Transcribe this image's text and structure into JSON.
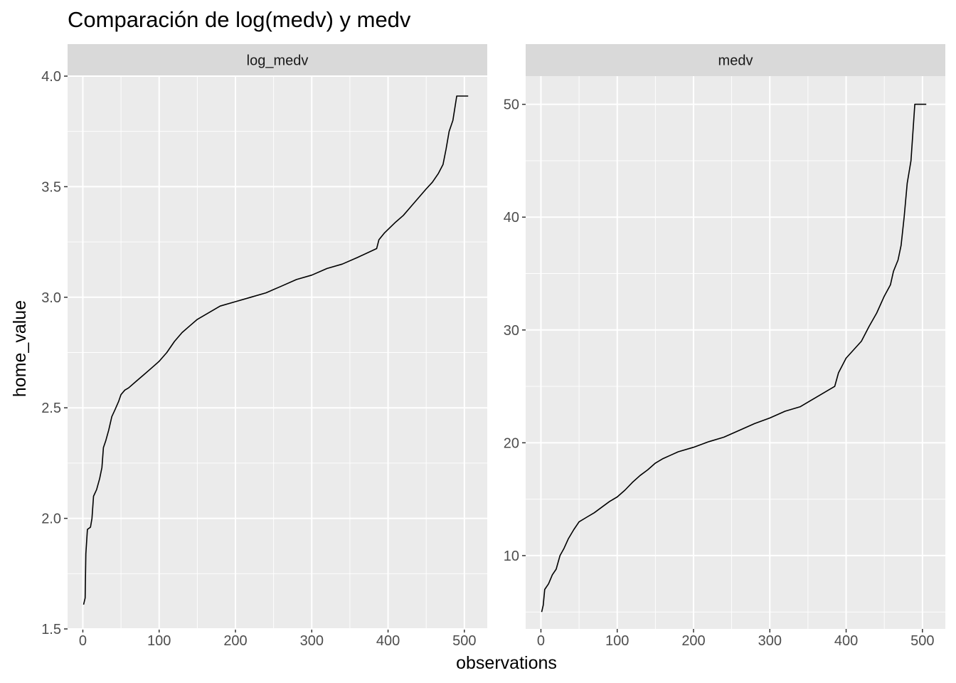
{
  "chart_data": {
    "type": "line",
    "title": "Comparación de log(medv) y medv",
    "xlabel": "observations",
    "ylabel": "home_value",
    "grid": true,
    "line_color": "#000000",
    "panel_background": "#ebebeb",
    "strip_background": "#d9d9d9",
    "grid_color": "#ffffff",
    "panels": [
      {
        "strip": "log_medv",
        "xlim": [
          -20,
          530
        ],
        "ylim": [
          1.5,
          4.0
        ],
        "xticks": [
          0,
          100,
          200,
          300,
          400,
          500
        ],
        "yticks": [
          1.5,
          2.0,
          2.5,
          3.0,
          3.5,
          4.0
        ],
        "ytick_labels": [
          "1.5",
          "2.0",
          "2.5",
          "3.0",
          "3.5",
          "4.0"
        ],
        "points": [
          [
            1,
            1.61
          ],
          [
            3,
            1.64
          ],
          [
            4,
            1.84
          ],
          [
            6,
            1.95
          ],
          [
            10,
            1.96
          ],
          [
            12,
            2.0
          ],
          [
            14,
            2.1
          ],
          [
            18,
            2.13
          ],
          [
            22,
            2.18
          ],
          [
            25,
            2.23
          ],
          [
            27,
            2.32
          ],
          [
            30,
            2.35
          ],
          [
            34,
            2.4
          ],
          [
            38,
            2.46
          ],
          [
            42,
            2.49
          ],
          [
            47,
            2.53
          ],
          [
            50,
            2.56
          ],
          [
            55,
            2.58
          ],
          [
            60,
            2.59
          ],
          [
            70,
            2.62
          ],
          [
            80,
            2.65
          ],
          [
            90,
            2.68
          ],
          [
            100,
            2.71
          ],
          [
            110,
            2.75
          ],
          [
            120,
            2.8
          ],
          [
            130,
            2.84
          ],
          [
            140,
            2.87
          ],
          [
            150,
            2.9
          ],
          [
            160,
            2.92
          ],
          [
            170,
            2.94
          ],
          [
            180,
            2.96
          ],
          [
            200,
            2.98
          ],
          [
            220,
            3.0
          ],
          [
            240,
            3.02
          ],
          [
            260,
            3.05
          ],
          [
            280,
            3.08
          ],
          [
            300,
            3.1
          ],
          [
            320,
            3.13
          ],
          [
            340,
            3.15
          ],
          [
            360,
            3.18
          ],
          [
            385,
            3.22
          ],
          [
            388,
            3.26
          ],
          [
            395,
            3.29
          ],
          [
            410,
            3.34
          ],
          [
            420,
            3.37
          ],
          [
            430,
            3.41
          ],
          [
            440,
            3.45
          ],
          [
            450,
            3.49
          ],
          [
            458,
            3.52
          ],
          [
            466,
            3.56
          ],
          [
            472,
            3.6
          ],
          [
            476,
            3.67
          ],
          [
            480,
            3.75
          ],
          [
            485,
            3.8
          ],
          [
            490,
            3.91
          ],
          [
            505,
            3.91
          ]
        ]
      },
      {
        "strip": "medv",
        "xlim": [
          -20,
          530
        ],
        "ylim": [
          3.5,
          52.5
        ],
        "xticks": [
          0,
          100,
          200,
          300,
          400,
          500
        ],
        "yticks": [
          10,
          20,
          30,
          40,
          50
        ],
        "ytick_labels": [
          "10",
          "20",
          "30",
          "40",
          "50"
        ],
        "points": [
          [
            1,
            5.0
          ],
          [
            3,
            5.6
          ],
          [
            5,
            7.0
          ],
          [
            10,
            7.5
          ],
          [
            15,
            8.3
          ],
          [
            20,
            8.8
          ],
          [
            25,
            10.0
          ],
          [
            30,
            10.6
          ],
          [
            36,
            11.5
          ],
          [
            43,
            12.3
          ],
          [
            50,
            13.0
          ],
          [
            60,
            13.4
          ],
          [
            70,
            13.8
          ],
          [
            80,
            14.3
          ],
          [
            90,
            14.8
          ],
          [
            100,
            15.2
          ],
          [
            110,
            15.8
          ],
          [
            120,
            16.5
          ],
          [
            130,
            17.1
          ],
          [
            140,
            17.6
          ],
          [
            150,
            18.2
          ],
          [
            160,
            18.6
          ],
          [
            170,
            18.9
          ],
          [
            180,
            19.2
          ],
          [
            200,
            19.6
          ],
          [
            220,
            20.1
          ],
          [
            240,
            20.5
          ],
          [
            260,
            21.1
          ],
          [
            280,
            21.7
          ],
          [
            300,
            22.2
          ],
          [
            320,
            22.8
          ],
          [
            340,
            23.2
          ],
          [
            360,
            24.0
          ],
          [
            385,
            25.0
          ],
          [
            390,
            26.2
          ],
          [
            400,
            27.5
          ],
          [
            420,
            29.0
          ],
          [
            430,
            30.3
          ],
          [
            440,
            31.5
          ],
          [
            450,
            33.0
          ],
          [
            458,
            34.0
          ],
          [
            462,
            35.2
          ],
          [
            468,
            36.2
          ],
          [
            472,
            37.5
          ],
          [
            476,
            40.0
          ],
          [
            480,
            43.0
          ],
          [
            485,
            45.0
          ],
          [
            490,
            50.0
          ],
          [
            505,
            50.0
          ]
        ]
      }
    ]
  }
}
